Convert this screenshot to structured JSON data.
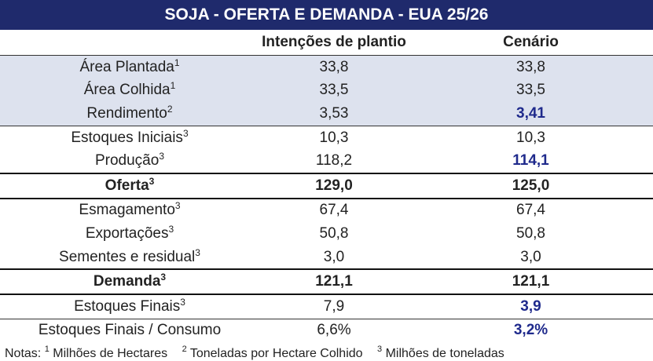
{
  "title": "SOJA - OFERTA E DEMANDA - EUA 25/26",
  "table": {
    "columns": [
      "Intenções de plantio",
      "Cenário"
    ],
    "rows": [
      {
        "label": "Área Plantada",
        "sup": "1",
        "values": [
          "33,8",
          "33,8"
        ]
      },
      {
        "label": "Área Colhida",
        "sup": "1",
        "values": [
          "33,5",
          "33,5"
        ]
      },
      {
        "label": "Rendimento",
        "sup": "2",
        "values": [
          "3,53",
          "3,41"
        ]
      },
      {
        "label": "Estoques Iniciais",
        "sup": "3",
        "values": [
          "10,3",
          "10,3"
        ]
      },
      {
        "label": "Produção",
        "sup": "3",
        "values": [
          "118,2",
          "114,1"
        ]
      },
      {
        "label": "Oferta",
        "sup": "3",
        "values": [
          "129,0",
          "125,0"
        ]
      },
      {
        "label": "Esmagamento",
        "sup": "3",
        "values": [
          "67,4",
          "67,4"
        ]
      },
      {
        "label": "Exportações",
        "sup": "3",
        "values": [
          "50,8",
          "50,8"
        ]
      },
      {
        "label": "Sementes e residual",
        "sup": "3",
        "values": [
          "3,0",
          "3,0"
        ]
      },
      {
        "label": "Demanda",
        "sup": "3",
        "values": [
          "121,1",
          "121,1"
        ]
      },
      {
        "label": "Estoques Finais",
        "sup": "3",
        "values": [
          "7,9",
          "3,9"
        ]
      },
      {
        "label": "Estoques Finais / Consumo",
        "sup": null,
        "values": [
          "6,6%",
          "3,2%"
        ]
      }
    ]
  },
  "notes": {
    "prefix": "Notas:",
    "items": [
      {
        "sup": "1",
        "text": "Milhões de Hectares"
      },
      {
        "sup": "2",
        "text": "Toneladas por Hectare Colhido"
      },
      {
        "sup": "3",
        "text": "Milhões de toneladas"
      }
    ]
  }
}
